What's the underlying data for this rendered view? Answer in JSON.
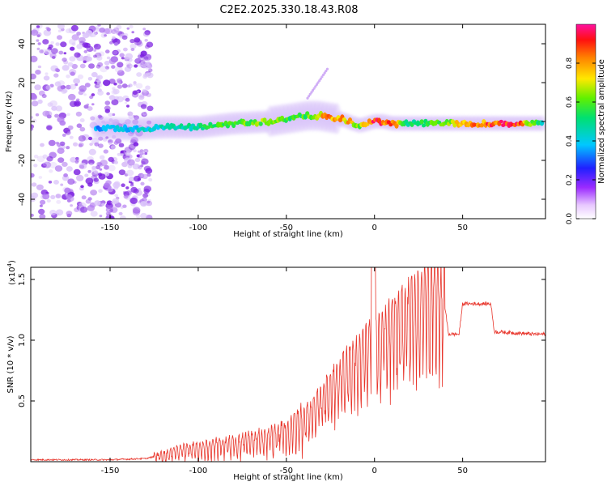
{
  "title": "C2E2.2025.330.18.43.R08",
  "chart_data": [
    {
      "type": "heatmap",
      "xlabel": "Height of straight line (km)",
      "ylabel": "Frequency (Hz)",
      "xlim": [
        -195,
        97
      ],
      "ylim": [
        -50,
        50
      ],
      "xticks": [
        -150,
        -100,
        -50,
        0,
        50
      ],
      "yticks": [
        -40,
        -20,
        0,
        20,
        40
      ],
      "colorbar": {
        "label": "Normalized spectral amplitude",
        "ticks": [
          0.0,
          0.2,
          0.4,
          0.6,
          0.8
        ],
        "range": [
          0,
          1
        ]
      },
      "ridge": {
        "x": [
          -158,
          -140,
          -120,
          -100,
          -80,
          -60,
          -45,
          -38,
          -32,
          -25,
          -18,
          -12,
          -8,
          -4,
          0,
          5,
          10,
          20,
          40,
          60,
          80,
          96
        ],
        "frequency": [
          -3,
          -4,
          -3,
          -3,
          -1,
          0,
          2,
          3,
          3,
          2,
          1,
          -1,
          -2,
          -1,
          0,
          0,
          -1,
          -1,
          -1,
          -1,
          -1,
          -1
        ],
        "amplitude": [
          0.35,
          0.4,
          0.45,
          0.5,
          0.6,
          0.65,
          0.55,
          0.6,
          0.75,
          0.85,
          0.8,
          0.75,
          0.6,
          0.85,
          0.95,
          0.9,
          0.85,
          0.5,
          0.65,
          0.85,
          0.95,
          0.45
        ]
      },
      "noise_region_x": [
        -195,
        -127
      ]
    },
    {
      "type": "line",
      "xlabel": "Height of straight line (km)",
      "ylabel": "SNR (10 * v/v)",
      "yscale_label": "(x10",
      "yscale_exp": "4",
      "xlim": [
        -195,
        97
      ],
      "ylim": [
        0,
        1.6
      ],
      "xticks": [
        -150,
        -100,
        -50,
        0,
        50
      ],
      "yticks": [
        0.5,
        1.0,
        1.5
      ],
      "series": [
        {
          "name": "SNR",
          "color": "#e8342a",
          "x": [
            -195,
            -150,
            -130,
            -120,
            -110,
            -100,
            -90,
            -80,
            -70,
            -60,
            -50,
            -42,
            -36,
            -30,
            -24,
            -18,
            -12,
            -6,
            0,
            6,
            12,
            18,
            24,
            30,
            36,
            40,
            42,
            48,
            50,
            60,
            66,
            68,
            80,
            90,
            97
          ],
          "y": [
            0.01,
            0.01,
            0.02,
            0.05,
            0.08,
            0.1,
            0.12,
            0.14,
            0.16,
            0.18,
            0.22,
            0.3,
            0.38,
            0.48,
            0.58,
            0.68,
            0.76,
            0.83,
            0.9,
            0.97,
            1.05,
            1.12,
            1.18,
            1.23,
            1.26,
            1.27,
            1.05,
            1.05,
            1.3,
            1.3,
            1.3,
            1.07,
            1.06,
            1.05,
            1.05
          ]
        }
      ]
    }
  ],
  "colors": {
    "axis": "#000000",
    "line": "#e8342a",
    "noise": "#7b1fe0"
  }
}
